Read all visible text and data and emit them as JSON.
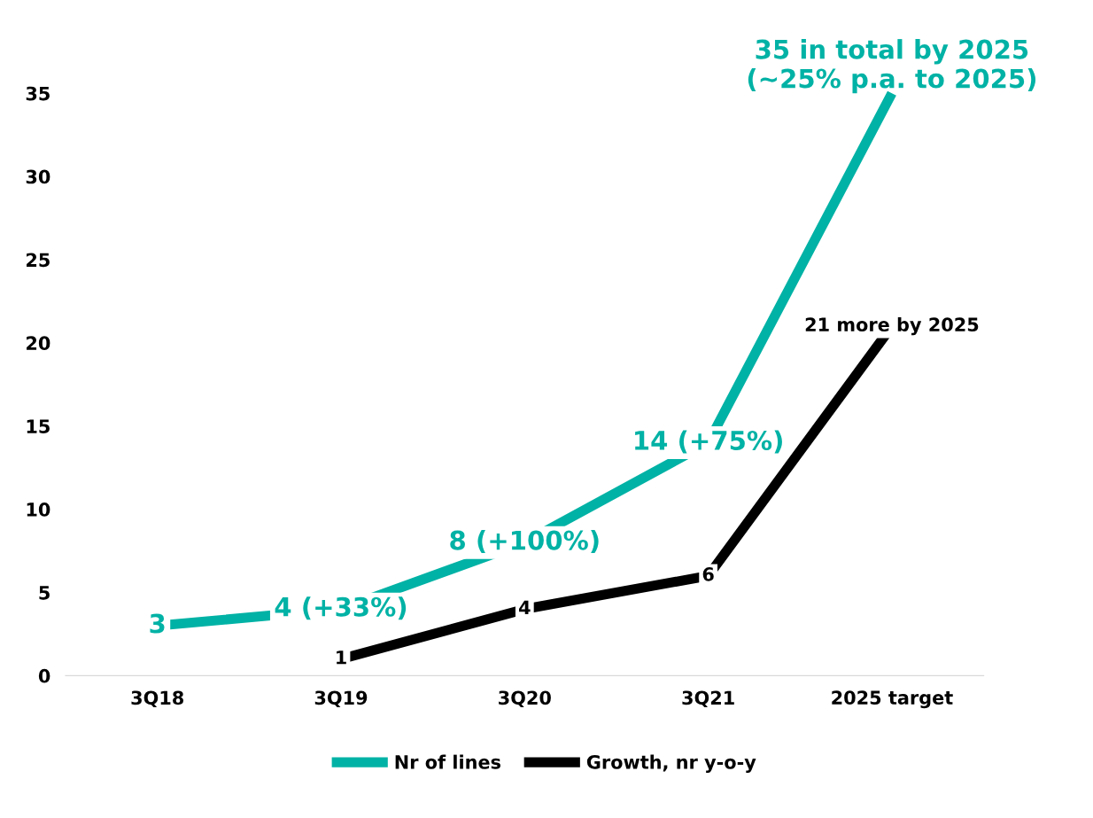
{
  "chart_data": {
    "type": "line",
    "categories": [
      "3Q18",
      "3Q19",
      "3Q20",
      "3Q21",
      "2025 target"
    ],
    "series": [
      {
        "name": "Nr of lines",
        "color": "#00b2a5",
        "values": [
          3,
          4,
          8,
          14,
          35
        ],
        "value_labels": [
          "3",
          "4 (+33%)",
          "8 (+100%)",
          "14 (+75%)",
          "35 in total by 2025\n(~25% p.a. to 2025)"
        ]
      },
      {
        "name": "Growth, nr y-o-y",
        "color": "#000000",
        "values": [
          null,
          1,
          4,
          6,
          21
        ],
        "value_labels": [
          null,
          "1",
          "4",
          "6",
          "21 more by 2025"
        ]
      }
    ],
    "ylim": [
      0,
      35
    ],
    "yticks": [
      0,
      5,
      10,
      15,
      20,
      25,
      30,
      35
    ],
    "grid": false,
    "legend": "bottom",
    "line_style": "solid"
  }
}
